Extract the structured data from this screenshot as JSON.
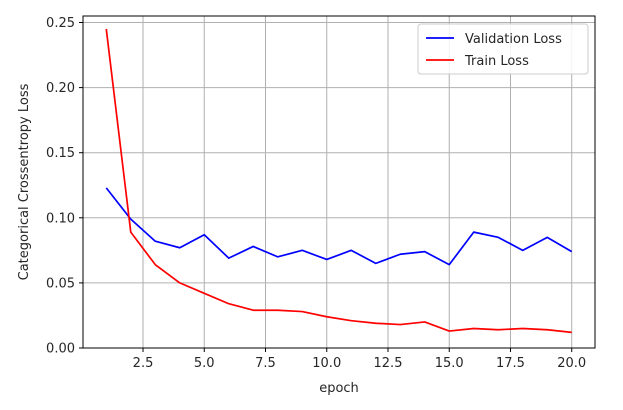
{
  "chart_data": {
    "type": "line",
    "title": "",
    "xlabel": "epoch",
    "ylabel": "Categorical Crossentropy Loss",
    "xlim": [
      0.05,
      20.95
    ],
    "ylim": [
      0.0,
      0.255
    ],
    "xticks": [
      2.5,
      5.0,
      7.5,
      10.0,
      12.5,
      15.0,
      17.5,
      20.0
    ],
    "xtick_labels": [
      "2.5",
      "5.0",
      "7.5",
      "10.0",
      "12.5",
      "15.0",
      "17.5",
      "20.0"
    ],
    "yticks": [
      0.0,
      0.05,
      0.1,
      0.15,
      0.2,
      0.25
    ],
    "ytick_labels": [
      "0.00",
      "0.05",
      "0.10",
      "0.15",
      "0.20",
      "0.25"
    ],
    "grid": true,
    "legend_position": "top-right",
    "x": [
      1,
      2,
      3,
      4,
      5,
      6,
      7,
      8,
      9,
      10,
      11,
      12,
      13,
      14,
      15,
      16,
      17,
      18,
      19,
      20
    ],
    "series": [
      {
        "name": "Validation Loss",
        "color": "#0000ff",
        "values": [
          0.123,
          0.099,
          0.082,
          0.077,
          0.087,
          0.069,
          0.078,
          0.07,
          0.075,
          0.068,
          0.075,
          0.065,
          0.072,
          0.074,
          0.064,
          0.089,
          0.085,
          0.075,
          0.085,
          0.074
        ]
      },
      {
        "name": "Train Loss",
        "color": "#ff0000",
        "values": [
          0.245,
          0.089,
          0.064,
          0.05,
          0.042,
          0.034,
          0.029,
          0.029,
          0.028,
          0.024,
          0.021,
          0.019,
          0.018,
          0.02,
          0.013,
          0.015,
          0.014,
          0.015,
          0.014,
          0.012
        ]
      }
    ]
  }
}
